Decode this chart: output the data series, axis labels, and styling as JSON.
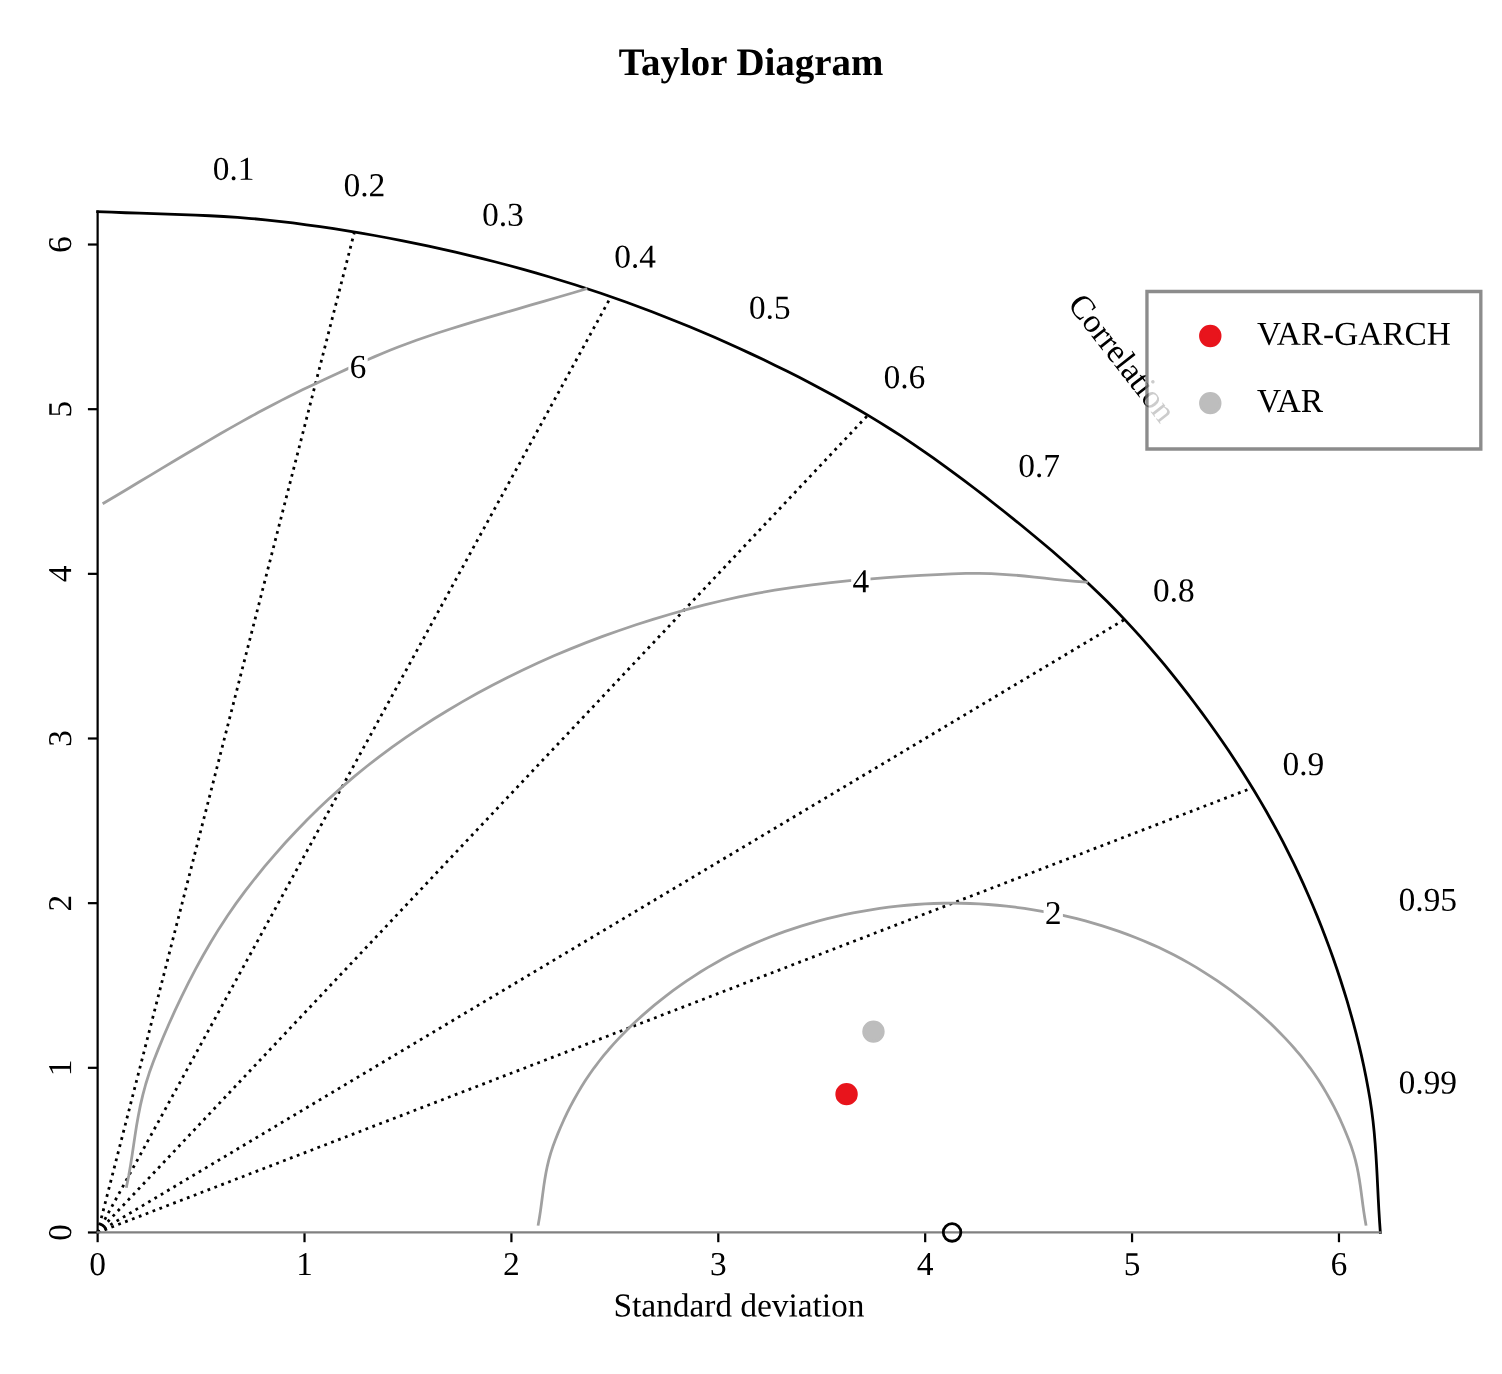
{
  "chart_data": {
    "type": "scatter",
    "title": "Taylor Diagram",
    "xlabel": "Standard deviation",
    "xlim": [
      0,
      6.2
    ],
    "ylim": [
      0,
      6.2
    ],
    "xticks": [
      0,
      1,
      2,
      3,
      4,
      5,
      6
    ],
    "yticks": [
      0,
      1,
      2,
      3,
      4,
      5,
      6
    ],
    "grid": false,
    "legend": "top right",
    "marker": "circle",
    "series": [
      {
        "type": "line",
        "color": "#000000",
        "line_style": "solid",
        "marker": "none",
        "x": [
          6.2,
          6.15,
          5.99,
          5.73,
          5.37,
          4.92,
          4.38,
          3.78,
          3.1,
          2.37,
          1.6,
          0.81,
          0
        ],
        "values": [
          0,
          0.81,
          1.6,
          2.37,
          3.1,
          3.78,
          4.38,
          4.92,
          5.37,
          5.73,
          5.99,
          6.15,
          6.2
        ]
      },
      {
        "type": "line",
        "color": "#000000",
        "line_style": "dotted",
        "marker": "none",
        "x": [
          0,
          1.24
        ],
        "values": [
          0,
          6.07
        ]
      },
      {
        "type": "line",
        "color": "#000000",
        "line_style": "dotted",
        "marker": "none",
        "x": [
          0,
          2.48
        ],
        "values": [
          0,
          5.68
        ]
      },
      {
        "type": "line",
        "color": "#000000",
        "line_style": "dotted",
        "marker": "none",
        "x": [
          0,
          3.72
        ],
        "values": [
          0,
          4.96
        ]
      },
      {
        "type": "line",
        "color": "#000000",
        "line_style": "dotted",
        "marker": "none",
        "x": [
          0,
          4.96
        ],
        "values": [
          0,
          3.72
        ]
      },
      {
        "type": "line",
        "color": "#000000",
        "line_style": "dotted",
        "marker": "none",
        "x": [
          0,
          5.58
        ],
        "values": [
          0,
          2.7
        ]
      },
      {
        "type": "line",
        "color": "#a0a0a0",
        "line_style": "solid",
        "marker": "none",
        "x": [
          6.13,
          6.06,
          5.86,
          5.54,
          5.13,
          4.65,
          4.13,
          3.61,
          3.13,
          2.72,
          2.4,
          2.2,
          2.13
        ],
        "values": [
          0.05,
          0.52,
          1.0,
          1.41,
          1.73,
          1.93,
          2.0,
          1.93,
          1.73,
          1.41,
          1.0,
          0.52,
          0.05
        ]
      },
      {
        "type": "line",
        "color": "#a0a0a0",
        "line_style": "solid",
        "marker": "none",
        "x": [
          4.78,
          4.13,
          3.1,
          2.13,
          1.3,
          0.67,
          0.27,
          0.14
        ],
        "values": [
          3.95,
          4.0,
          3.86,
          3.46,
          2.83,
          2.0,
          1.04,
          0.28
        ]
      },
      {
        "type": "line",
        "color": "#a0a0a0",
        "line_style": "solid",
        "marker": "none",
        "x": [
          2.36,
          1.59,
          1.13,
          0.69,
          0.03
        ],
        "values": [
          5.73,
          5.44,
          5.2,
          4.92,
          4.43
        ]
      },
      {
        "color": "#000000",
        "x": [
          4.13
        ],
        "values": [
          0
        ]
      },
      {
        "name": "VAR-GARCH",
        "color": "#e8141c",
        "x": [
          3.62
        ],
        "values": [
          0.84
        ]
      },
      {
        "name": "VAR",
        "color": "#bdbdbd",
        "x": [
          3.75
        ],
        "values": [
          1.22
        ]
      }
    ],
    "annotations": [
      "0.1",
      "0.2",
      "0.3",
      "0.4",
      "0.5",
      "0.6",
      "0.7",
      "0.8",
      "0.9",
      "0.95",
      "0.99",
      "Correlation",
      "2",
      "4",
      "6"
    ]
  }
}
